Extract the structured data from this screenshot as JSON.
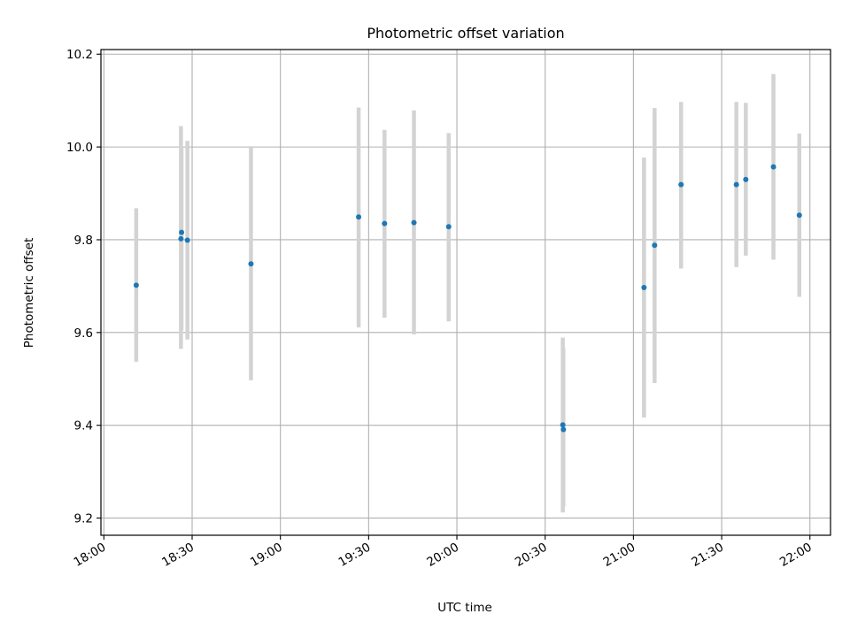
{
  "chart_data": {
    "type": "scatter",
    "title": "Photometric offset variation",
    "xlabel": "UTC time",
    "ylabel": "Photometric offset",
    "x_axis": {
      "type": "time",
      "min": "17:59",
      "max": "22:07",
      "ticks": [
        "18:00",
        "18:30",
        "19:00",
        "19:30",
        "20:00",
        "20:30",
        "21:00",
        "21:30",
        "22:00"
      ]
    },
    "y_axis": {
      "min": 9.163,
      "max": 10.21,
      "ticks": [
        "9.2",
        "9.4",
        "9.6",
        "9.8",
        "10.0",
        "10.2"
      ]
    },
    "grid": true,
    "colors": {
      "marker": "#1f77b4",
      "errorbar": "#d3d3d3",
      "grid": "#b0b0b0"
    },
    "points": [
      {
        "time": "18:11:00",
        "y": 9.702,
        "y_low": 9.537,
        "y_high": 9.868
      },
      {
        "time": "18:26:12",
        "y": 9.802,
        "y_low": 9.565,
        "y_high": 10.045
      },
      {
        "time": "18:26:24",
        "y": 9.816,
        "y_low": 9.605,
        "y_high": 9.998
      },
      {
        "time": "18:28:24",
        "y": 9.799,
        "y_low": 9.585,
        "y_high": 10.013
      },
      {
        "time": "18:50:00",
        "y": 9.748,
        "y_low": 9.497,
        "y_high": 10.0
      },
      {
        "time": "19:26:36",
        "y": 9.849,
        "y_low": 9.611,
        "y_high": 10.085
      },
      {
        "time": "19:35:24",
        "y": 9.835,
        "y_low": 9.632,
        "y_high": 10.037
      },
      {
        "time": "19:45:24",
        "y": 9.837,
        "y_low": 9.596,
        "y_high": 10.079
      },
      {
        "time": "19:57:12",
        "y": 9.828,
        "y_low": 9.624,
        "y_high": 10.03
      },
      {
        "time": "20:36:00",
        "y": 9.401,
        "y_low": 9.212,
        "y_high": 9.589
      },
      {
        "time": "20:36:12",
        "y": 9.391,
        "y_low": 9.225,
        "y_high": 9.566
      },
      {
        "time": "21:03:36",
        "y": 9.697,
        "y_low": 9.417,
        "y_high": 9.977
      },
      {
        "time": "21:07:12",
        "y": 9.788,
        "y_low": 9.491,
        "y_high": 10.084
      },
      {
        "time": "21:16:12",
        "y": 9.919,
        "y_low": 9.738,
        "y_high": 10.097
      },
      {
        "time": "21:35:00",
        "y": 9.919,
        "y_low": 9.741,
        "y_high": 10.097
      },
      {
        "time": "21:38:12",
        "y": 9.93,
        "y_low": 9.766,
        "y_high": 10.095
      },
      {
        "time": "21:47:36",
        "y": 9.957,
        "y_low": 9.757,
        "y_high": 10.157
      },
      {
        "time": "21:56:24",
        "y": 9.853,
        "y_low": 9.677,
        "y_high": 10.029
      }
    ]
  }
}
